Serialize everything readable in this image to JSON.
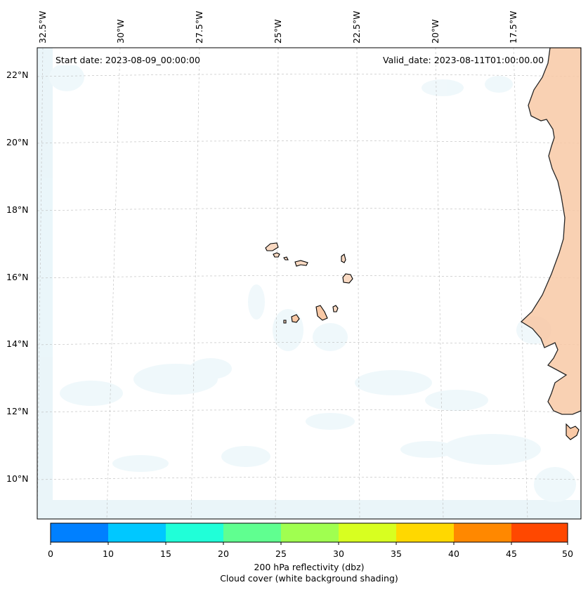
{
  "annotations": {
    "start_date": "Start date: 2023-08-09_00:00:00",
    "valid_date": "Valid_date: 2023-08-11T01:00:00.00"
  },
  "latitude_labels": [
    "22°N",
    "20°N",
    "18°N",
    "16°N",
    "14°N",
    "12°N",
    "10°N"
  ],
  "longitude_labels": [
    "32.5°W",
    "30°W",
    "27.5°W",
    "25°W",
    "22.5°W",
    "20°W",
    "17.5°W"
  ],
  "colorbar": {
    "ticks": [
      "0",
      "10",
      "15",
      "20",
      "25",
      "30",
      "35",
      "40",
      "45",
      "50"
    ],
    "colors": [
      "#0080ff",
      "#00c8ff",
      "#20ffd8",
      "#60ff90",
      "#a0ff50",
      "#d8ff20",
      "#ffd800",
      "#ff8800",
      "#ff4800"
    ],
    "label_line1": "200 hPa reflectivity (dbz)",
    "label_line2": "Cloud cover (white background shading)"
  },
  "map": {
    "region": "Eastern tropical Atlantic, Cape Verde islands and West African coast",
    "coastline_color": "#000000",
    "land_shading_color": "#f9c9a6",
    "cloud_shading_color": "#d9eef5",
    "gridline_color": "#bbbbbb"
  }
}
